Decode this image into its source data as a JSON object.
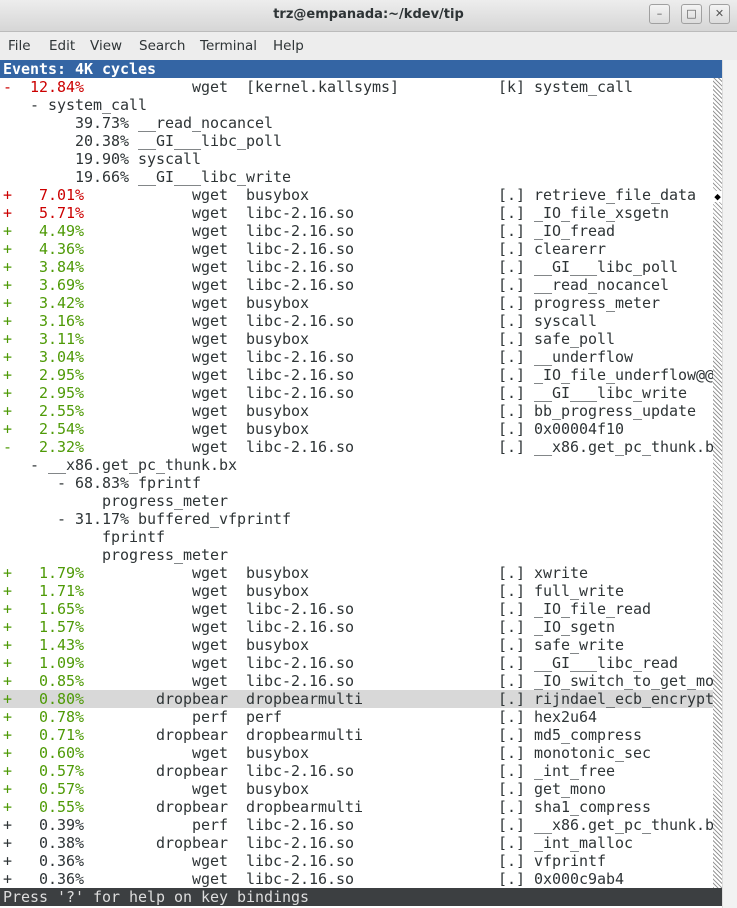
{
  "window": {
    "title": "trz@empanada:~/kdev/tip"
  },
  "menu": {
    "items": [
      "File",
      "Edit",
      "View",
      "Search",
      "Terminal",
      "Help"
    ]
  },
  "terminal": {
    "header": "Events: 4K cycles",
    "rows": [
      {
        "sign": "-",
        "percent": "12.84%",
        "command": "wget",
        "dso": "[kernel.kallsyms]",
        "priv": "[k]",
        "symbol": "system_call",
        "color": "#cc0000"
      },
      {
        "text": "- system_call"
      },
      {
        "text": "39.73% __read_nocancel"
      },
      {
        "text": "20.38% __GI___libc_poll"
      },
      {
        "text": "19.90% syscall"
      },
      {
        "text": "19.66% __GI___libc_write"
      },
      {
        "sign": "+",
        "percent": "7.01%",
        "command": "wget",
        "dso": "busybox",
        "priv": "[.]",
        "symbol": "retrieve_file_data",
        "color": "#cc0000"
      },
      {
        "sign": "+",
        "percent": "5.71%",
        "command": "wget",
        "dso": "libc-2.16.so",
        "priv": "[.]",
        "symbol": "_IO_file_xsgetn",
        "color": "#cc0000"
      },
      {
        "sign": "+",
        "percent": "4.49%",
        "command": "wget",
        "dso": "libc-2.16.so",
        "priv": "[.]",
        "symbol": "_IO_fread",
        "color": "#4e9a06"
      },
      {
        "sign": "+",
        "percent": "4.36%",
        "command": "wget",
        "dso": "libc-2.16.so",
        "priv": "[.]",
        "symbol": "clearerr",
        "color": "#4e9a06"
      },
      {
        "sign": "+",
        "percent": "3.84%",
        "command": "wget",
        "dso": "libc-2.16.so",
        "priv": "[.]",
        "symbol": "__GI___libc_poll",
        "color": "#4e9a06"
      },
      {
        "sign": "+",
        "percent": "3.69%",
        "command": "wget",
        "dso": "libc-2.16.so",
        "priv": "[.]",
        "symbol": "__read_nocancel",
        "color": "#4e9a06"
      },
      {
        "sign": "+",
        "percent": "3.42%",
        "command": "wget",
        "dso": "busybox",
        "priv": "[.]",
        "symbol": "progress_meter",
        "color": "#4e9a06"
      },
      {
        "sign": "+",
        "percent": "3.16%",
        "command": "wget",
        "dso": "libc-2.16.so",
        "priv": "[.]",
        "symbol": "syscall",
        "color": "#4e9a06"
      },
      {
        "sign": "+",
        "percent": "3.11%",
        "command": "wget",
        "dso": "busybox",
        "priv": "[.]",
        "symbol": "safe_poll",
        "color": "#4e9a06"
      },
      {
        "sign": "+",
        "percent": "3.04%",
        "command": "wget",
        "dso": "libc-2.16.so",
        "priv": "[.]",
        "symbol": "__underflow",
        "color": "#4e9a06"
      },
      {
        "sign": "+",
        "percent": "2.95%",
        "command": "wget",
        "dso": "libc-2.16.so",
        "priv": "[.]",
        "symbol": "_IO_file_underflow@@",
        "color": "#4e9a06"
      },
      {
        "sign": "+",
        "percent": "2.95%",
        "command": "wget",
        "dso": "libc-2.16.so",
        "priv": "[.]",
        "symbol": "__GI___libc_write",
        "color": "#4e9a06"
      },
      {
        "sign": "+",
        "percent": "2.55%",
        "command": "wget",
        "dso": "busybox",
        "priv": "[.]",
        "symbol": "bb_progress_update",
        "color": "#4e9a06"
      },
      {
        "sign": "+",
        "percent": "2.54%",
        "command": "wget",
        "dso": "busybox",
        "priv": "[.]",
        "symbol": "0x00004f10",
        "color": "#4e9a06"
      },
      {
        "sign": "-",
        "percent": "2.32%",
        "command": "wget",
        "dso": "libc-2.16.so",
        "priv": "[.]",
        "symbol": "__x86.get_pc_thunk.b",
        "color": "#4e9a06"
      },
      {
        "text": "- __x86.get_pc_thunk.bx"
      },
      {
        "text": "- 68.83% fprintf"
      },
      {
        "text": "progress_meter"
      },
      {
        "text": "- 31.17% buffered_vfprintf"
      },
      {
        "text": "fprintf"
      },
      {
        "text": "progress_meter"
      },
      {
        "sign": "+",
        "percent": "1.79%",
        "command": "wget",
        "dso": "busybox",
        "priv": "[.]",
        "symbol": "xwrite",
        "color": "#4e9a06"
      },
      {
        "sign": "+",
        "percent": "1.71%",
        "command": "wget",
        "dso": "busybox",
        "priv": "[.]",
        "symbol": "full_write",
        "color": "#4e9a06"
      },
      {
        "sign": "+",
        "percent": "1.65%",
        "command": "wget",
        "dso": "libc-2.16.so",
        "priv": "[.]",
        "symbol": "_IO_file_read",
        "color": "#4e9a06"
      },
      {
        "sign": "+",
        "percent": "1.57%",
        "command": "wget",
        "dso": "libc-2.16.so",
        "priv": "[.]",
        "symbol": "_IO_sgetn",
        "color": "#4e9a06"
      },
      {
        "sign": "+",
        "percent": "1.43%",
        "command": "wget",
        "dso": "busybox",
        "priv": "[.]",
        "symbol": "safe_write",
        "color": "#4e9a06"
      },
      {
        "sign": "+",
        "percent": "1.09%",
        "command": "wget",
        "dso": "libc-2.16.so",
        "priv": "[.]",
        "symbol": "__GI___libc_read",
        "color": "#4e9a06"
      },
      {
        "sign": "+",
        "percent": "0.85%",
        "command": "wget",
        "dso": "libc-2.16.so",
        "priv": "[.]",
        "symbol": "_IO_switch_to_get_mo",
        "color": "#4e9a06"
      },
      {
        "sign": "+",
        "percent": "0.80%",
        "command": "dropbear",
        "dso": "dropbearmulti",
        "priv": "[.]",
        "symbol": "rijndael_ecb_encrypt",
        "color": "#4e9a06",
        "highlighted": true
      },
      {
        "sign": "+",
        "percent": "0.78%",
        "command": "perf",
        "dso": "perf",
        "priv": "[.]",
        "symbol": "hex2u64",
        "color": "#4e9a06"
      },
      {
        "sign": "+",
        "percent": "0.71%",
        "command": "dropbear",
        "dso": "dropbearmulti",
        "priv": "[.]",
        "symbol": "md5_compress",
        "color": "#4e9a06"
      },
      {
        "sign": "+",
        "percent": "0.60%",
        "command": "wget",
        "dso": "busybox",
        "priv": "[.]",
        "symbol": "monotonic_sec",
        "color": "#4e9a06"
      },
      {
        "sign": "+",
        "percent": "0.57%",
        "command": "dropbear",
        "dso": "libc-2.16.so",
        "priv": "[.]",
        "symbol": "_int_free",
        "color": "#4e9a06"
      },
      {
        "sign": "+",
        "percent": "0.57%",
        "command": "wget",
        "dso": "busybox",
        "priv": "[.]",
        "symbol": "get_mono",
        "color": "#4e9a06"
      },
      {
        "sign": "+",
        "percent": "0.55%",
        "command": "dropbear",
        "dso": "dropbearmulti",
        "priv": "[.]",
        "symbol": "sha1_compress",
        "color": "#4e9a06"
      },
      {
        "sign": "+",
        "percent": "0.39%",
        "command": "perf",
        "dso": "libc-2.16.so",
        "priv": "[.]",
        "symbol": "__x86.get_pc_thunk.b",
        "color": "#2e3436"
      },
      {
        "sign": "+",
        "percent": "0.38%",
        "command": "dropbear",
        "dso": "libc-2.16.so",
        "priv": "[.]",
        "symbol": "_int_malloc",
        "color": "#2e3436"
      },
      {
        "sign": "+",
        "percent": "0.36%",
        "command": "wget",
        "dso": "libc-2.16.so",
        "priv": "[.]",
        "symbol": "vfprintf",
        "color": "#2e3436"
      },
      {
        "sign": "+",
        "percent": "0.36%",
        "command": "wget",
        "dso": "libc-2.16.so",
        "priv": "[.]",
        "symbol": "0x000c9ab4",
        "color": "#2e3436"
      }
    ],
    "status": "Press '?' for help on key bindings"
  }
}
